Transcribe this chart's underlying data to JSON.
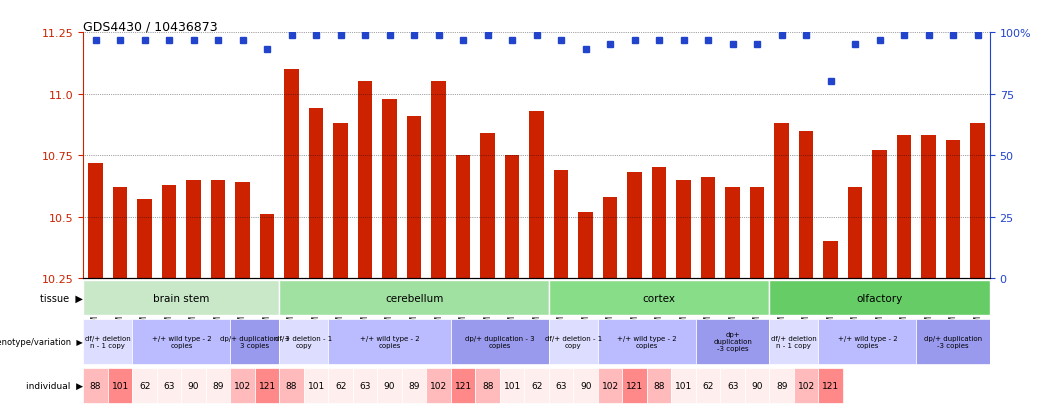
{
  "title": "GDS4430 / 10436873",
  "samples": [
    "GSM792717",
    "GSM792694",
    "GSM792693",
    "GSM792713",
    "GSM792724",
    "GSM792721",
    "GSM792700",
    "GSM792705",
    "GSM792718",
    "GSM792695",
    "GSM792696",
    "GSM792709",
    "GSM792714",
    "GSM792725",
    "GSM792726",
    "GSM792722",
    "GSM792701",
    "GSM792702",
    "GSM792706",
    "GSM792719",
    "GSM792697",
    "GSM792698",
    "GSM792710",
    "GSM792715",
    "GSM792727",
    "GSM792728",
    "GSM792703",
    "GSM792707",
    "GSM792720",
    "GSM792699",
    "GSM792711",
    "GSM792712",
    "GSM792716",
    "GSM792729",
    "GSM792723",
    "GSM792704",
    "GSM792708"
  ],
  "bar_values": [
    10.72,
    10.62,
    10.57,
    10.63,
    10.65,
    10.65,
    10.64,
    10.51,
    11.1,
    10.94,
    10.88,
    11.05,
    10.98,
    10.91,
    11.05,
    10.75,
    10.84,
    10.75,
    10.93,
    10.69,
    10.52,
    10.58,
    10.68,
    10.7,
    10.65,
    10.66,
    10.62,
    10.62,
    10.88,
    10.85,
    10.4,
    10.62,
    10.77,
    10.83,
    10.83,
    10.81,
    10.88
  ],
  "percentile_values": [
    97,
    97,
    97,
    97,
    97,
    97,
    97,
    93,
    99,
    99,
    99,
    99,
    99,
    99,
    99,
    97,
    99,
    97,
    99,
    97,
    93,
    95,
    97,
    97,
    97,
    97,
    95,
    95,
    99,
    99,
    80,
    95,
    97,
    99,
    99,
    99,
    99
  ],
  "ylim": [
    10.25,
    11.25
  ],
  "yticks": [
    10.25,
    10.5,
    10.75,
    11.0,
    11.25
  ],
  "y2lim": [
    0,
    100
  ],
  "y2ticks": [
    0,
    25,
    50,
    75,
    100
  ],
  "bar_color": "#cc2200",
  "percentile_color": "#2244cc",
  "tissue_groups": [
    {
      "label": "brain stem",
      "start": 0,
      "end": 7,
      "color": "#c8e8c8"
    },
    {
      "label": "cerebellum",
      "start": 8,
      "end": 18,
      "color": "#a0e0a0"
    },
    {
      "label": "cortex",
      "start": 19,
      "end": 27,
      "color": "#88dd88"
    },
    {
      "label": "olfactory",
      "start": 28,
      "end": 36,
      "color": "#66cc66"
    }
  ],
  "genotype_groups": [
    {
      "label": "df/+ deletion\nn - 1 copy",
      "start": 0,
      "end": 1,
      "color": "#ddddff"
    },
    {
      "label": "+/+ wild type - 2\ncopies",
      "start": 2,
      "end": 5,
      "color": "#bbbbff"
    },
    {
      "label": "dp/+ duplication - 3\n3 copies",
      "start": 6,
      "end": 7,
      "color": "#9999ee"
    },
    {
      "label": "df/+ deletion - 1\ncopy",
      "start": 8,
      "end": 9,
      "color": "#ddddff"
    },
    {
      "label": "+/+ wild type - 2\ncopies",
      "start": 10,
      "end": 14,
      "color": "#bbbbff"
    },
    {
      "label": "dp/+ duplication - 3\ncopies",
      "start": 15,
      "end": 18,
      "color": "#9999ee"
    },
    {
      "label": "df/+ deletion - 1\ncopy",
      "start": 19,
      "end": 20,
      "color": "#ddddff"
    },
    {
      "label": "+/+ wild type - 2\ncopies",
      "start": 21,
      "end": 24,
      "color": "#bbbbff"
    },
    {
      "label": "dp+\nduplication\n-3 copies",
      "start": 25,
      "end": 27,
      "color": "#9999ee"
    },
    {
      "label": "df/+ deletion\nn - 1 copy",
      "start": 28,
      "end": 29,
      "color": "#ddddff"
    },
    {
      "label": "+/+ wild type - 2\ncopies",
      "start": 30,
      "end": 33,
      "color": "#bbbbff"
    },
    {
      "label": "dp/+ duplication\n-3 copies",
      "start": 34,
      "end": 36,
      "color": "#9999ee"
    }
  ],
  "individuals": [
    {
      "label": "88",
      "start": 0,
      "end": 0,
      "color": "#ffbbbb"
    },
    {
      "label": "101",
      "start": 1,
      "end": 1,
      "color": "#ff9999"
    },
    {
      "label": "62",
      "start": 2,
      "end": 2,
      "color": "#ffdddd"
    },
    {
      "label": "63",
      "start": 3,
      "end": 3,
      "color": "#ffdddd"
    },
    {
      "label": "90",
      "start": 4,
      "end": 4,
      "color": "#ffdddd"
    },
    {
      "label": "89",
      "start": 5,
      "end": 5,
      "color": "#ffdddd"
    },
    {
      "label": "102",
      "start": 6,
      "end": 6,
      "color": "#ffbbbb"
    },
    {
      "label": "121",
      "start": 7,
      "end": 7,
      "color": "#ff9999"
    },
    {
      "label": "88",
      "start": 8,
      "end": 9,
      "color": "#ffbbbb"
    },
    {
      "label": "101",
      "start": 9,
      "end": 9,
      "color": "#ffbbbb"
    },
    {
      "label": "62",
      "start": 10,
      "end": 10,
      "color": "#ffdddd"
    },
    {
      "label": "63",
      "start": 11,
      "end": 11,
      "color": "#ffdddd"
    },
    {
      "label": "90",
      "start": 12,
      "end": 12,
      "color": "#ffdddd"
    },
    {
      "label": "89",
      "start": 13,
      "end": 13,
      "color": "#ffdddd"
    },
    {
      "label": "102",
      "start": 14,
      "end": 14,
      "color": "#ffbbbb"
    },
    {
      "label": "121",
      "start": 15,
      "end": 15,
      "color": "#ff9999"
    },
    {
      "label": "88",
      "start": 16,
      "end": 16,
      "color": "#ffbbbb"
    },
    {
      "label": "101",
      "start": 17,
      "end": 17,
      "color": "#ffbbbb"
    },
    {
      "label": "62",
      "start": 18,
      "end": 18,
      "color": "#ffdddd"
    },
    {
      "label": "63",
      "start": 19,
      "end": 19,
      "color": "#ffdddd"
    },
    {
      "label": "90",
      "start": 20,
      "end": 20,
      "color": "#ffdddd"
    },
    {
      "label": "102",
      "start": 21,
      "end": 21,
      "color": "#ffbbbb"
    },
    {
      "label": "121",
      "start": 22,
      "end": 22,
      "color": "#ff9999"
    },
    {
      "label": "88",
      "start": 23,
      "end": 23,
      "color": "#ffbbbb"
    },
    {
      "label": "101",
      "start": 24,
      "end": 24,
      "color": "#ffbbbb"
    },
    {
      "label": "62",
      "start": 25,
      "end": 25,
      "color": "#ffdddd"
    },
    {
      "label": "63",
      "start": 26,
      "end": 26,
      "color": "#ffdddd"
    },
    {
      "label": "90",
      "start": 27,
      "end": 27,
      "color": "#ffdddd"
    },
    {
      "label": "89",
      "start": 28,
      "end": 28,
      "color": "#ffdddd"
    },
    {
      "label": "102",
      "start": 29,
      "end": 29,
      "color": "#ffbbbb"
    },
    {
      "label": "121",
      "start": 30,
      "end": 30,
      "color": "#ff9999"
    }
  ],
  "individual_row": [
    {
      "label": "88",
      "idx": 0,
      "color": "#ffbbbb"
    },
    {
      "label": "101",
      "idx": 1,
      "color": "#ff8888"
    },
    {
      "label": "62",
      "idx": 2,
      "color": "#ffeeee"
    },
    {
      "label": "63",
      "idx": 3,
      "color": "#ffeeee"
    },
    {
      "label": "90",
      "idx": 4,
      "color": "#ffeeee"
    },
    {
      "label": "89",
      "idx": 5,
      "color": "#ffeeee"
    },
    {
      "label": "102",
      "idx": 6,
      "color": "#ffbbbb"
    },
    {
      "label": "121",
      "idx": 7,
      "color": "#ff8888"
    },
    {
      "label": "88",
      "idx": 8,
      "color": "#ffbbbb"
    },
    {
      "label": "101",
      "idx": 9,
      "color": "#ffeeee"
    },
    {
      "label": "62",
      "idx": 10,
      "color": "#ffeeee"
    },
    {
      "label": "63",
      "idx": 11,
      "color": "#ffeeee"
    },
    {
      "label": "90",
      "idx": 12,
      "color": "#ffeeee"
    },
    {
      "label": "89",
      "idx": 13,
      "color": "#ffeeee"
    },
    {
      "label": "102",
      "idx": 14,
      "color": "#ffbbbb"
    },
    {
      "label": "121",
      "idx": 15,
      "color": "#ff8888"
    },
    {
      "label": "88",
      "idx": 16,
      "color": "#ffbbbb"
    },
    {
      "label": "101",
      "idx": 17,
      "color": "#ffeeee"
    },
    {
      "label": "62",
      "idx": 18,
      "color": "#ffeeee"
    },
    {
      "label": "63",
      "idx": 19,
      "color": "#ffeeee"
    },
    {
      "label": "90",
      "idx": 20,
      "color": "#ffeeee"
    },
    {
      "label": "102",
      "idx": 21,
      "color": "#ffbbbb"
    },
    {
      "label": "121",
      "idx": 22,
      "color": "#ff8888"
    },
    {
      "label": "88",
      "idx": 23,
      "color": "#ffbbbb"
    },
    {
      "label": "101",
      "idx": 24,
      "color": "#ffeeee"
    },
    {
      "label": "62",
      "idx": 25,
      "color": "#ffeeee"
    },
    {
      "label": "63",
      "idx": 26,
      "color": "#ffeeee"
    },
    {
      "label": "90",
      "idx": 27,
      "color": "#ffeeee"
    },
    {
      "label": "89",
      "idx": 28,
      "color": "#ffeeee"
    },
    {
      "label": "102",
      "idx": 29,
      "color": "#ffbbbb"
    },
    {
      "label": "121",
      "idx": 30,
      "color": "#ff8888"
    }
  ]
}
